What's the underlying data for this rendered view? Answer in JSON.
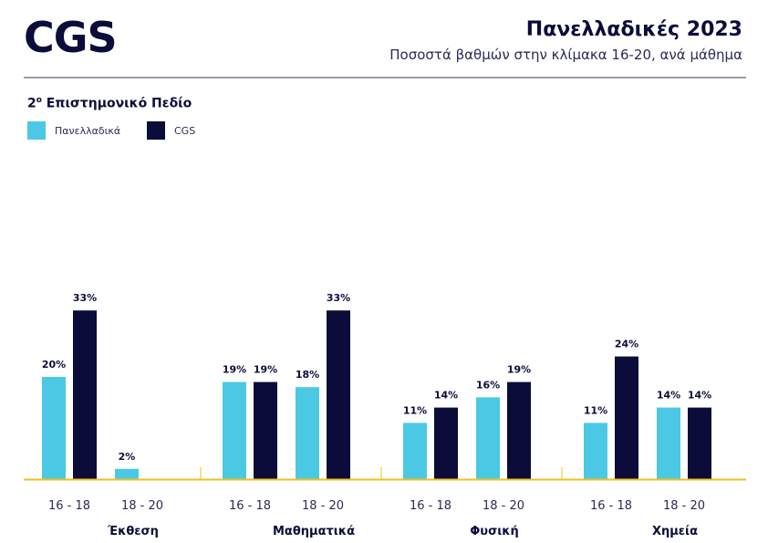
{
  "header": {
    "logo": "CGS",
    "title": "Πανελλαδικές 2023",
    "subtitle": "Ποσοστά βαθμών στην κλίμακα 16-20, ανά μάθημα",
    "section_main": "2",
    "section_sup": "ο",
    "section_rest": " Επιστημονικό Πεδίο"
  },
  "chart_data": {
    "type": "bar",
    "ylim": [
      0,
      40
    ],
    "unit": "%",
    "series": [
      {
        "name": "Πανελλαδικά",
        "color": "#4bc9e4"
      },
      {
        "name": "CGS",
        "color": "#0b0c3a"
      }
    ],
    "groups": [
      {
        "subject": "Έκθεση",
        "ranges": [
          {
            "label": "16 - 18",
            "values": [
              20,
              33
            ]
          },
          {
            "label": "18 - 20",
            "values": [
              2,
              null
            ]
          }
        ]
      },
      {
        "subject": "Μαθηματικά",
        "ranges": [
          {
            "label": "16 - 18",
            "values": [
              19,
              19
            ]
          },
          {
            "label": "18 - 20",
            "values": [
              18,
              33
            ]
          }
        ]
      },
      {
        "subject": "Φυσική",
        "ranges": [
          {
            "label": "16 - 18",
            "values": [
              11,
              14
            ]
          },
          {
            "label": "18 - 20",
            "values": [
              16,
              19
            ]
          }
        ]
      },
      {
        "subject": "Χημεία",
        "ranges": [
          {
            "label": "16 - 18",
            "values": [
              11,
              24
            ]
          },
          {
            "label": "18 - 20",
            "values": [
              14,
              14
            ]
          }
        ]
      }
    ],
    "axis_color": "#f2c01e",
    "grid": false,
    "legend_position": "top-left"
  }
}
